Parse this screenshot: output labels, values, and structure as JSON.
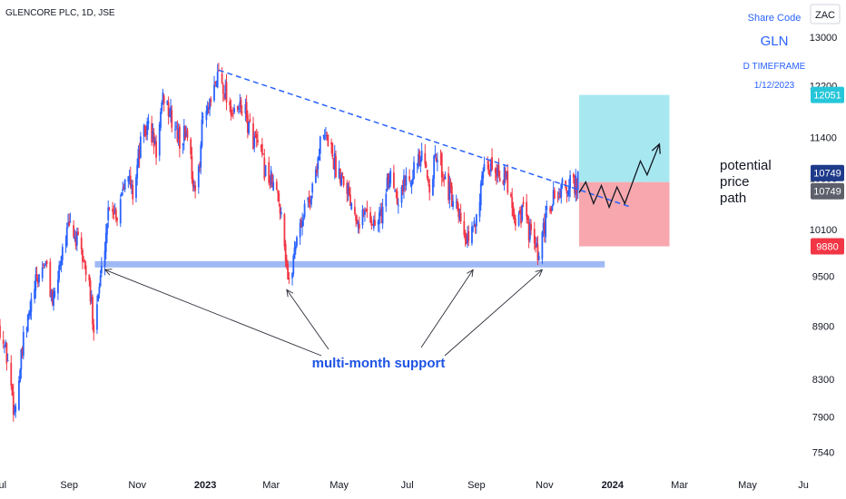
{
  "header": {
    "title": "GLENCORE PLC, 1D, JSE"
  },
  "currency_label": "ZAC",
  "info_box": {
    "line1": "Share Code",
    "line2": "GLN",
    "line3": "D TIMEFRAME",
    "line4": "1/12/2023"
  },
  "annotations": {
    "potential_lines": [
      "potential",
      "price",
      "path"
    ],
    "support_label": "multi-month support"
  },
  "colors": {
    "up": "#2962ff",
    "down": "#f23645",
    "target_zone": "#a7e8f0",
    "stop_zone": "#f7a7ad",
    "support_band": "#9fb9f5",
    "trendline": "#2962ff"
  },
  "price_badges": [
    {
      "value": 12051,
      "label": "12051",
      "color": "#26c6da"
    },
    {
      "value": 10749,
      "label": "10749",
      "color": "#1e3a8a"
    },
    {
      "value": 10749,
      "label": "10749",
      "color": "#5d606b"
    },
    {
      "value": 9880,
      "label": "9880",
      "color": "#f23645"
    }
  ],
  "chart_data": {
    "type": "candlestick",
    "title": "GLENCORE PLC, 1D, JSE",
    "y_scale": "log",
    "ylim": [
      7350,
      13650
    ],
    "y_ticks": [
      "13000",
      "12200",
      "11400",
      "10800",
      "10100",
      "9500",
      "8900",
      "8300",
      "7900",
      "7540"
    ],
    "y_tick_values": [
      13000,
      12200,
      11400,
      10800,
      10100,
      9500,
      8900,
      8300,
      7900,
      7540
    ],
    "x_ticks": [
      "Jul",
      "Sep",
      "Nov",
      "2023",
      "Mar",
      "May",
      "Jul",
      "Sep",
      "Nov",
      "2024",
      "Mar",
      "May",
      "Ju"
    ],
    "x_tick_dates": [
      "2022-07-01",
      "2022-09-01",
      "2022-11-01",
      "2023-01-01",
      "2023-03-01",
      "2023-05-01",
      "2023-07-01",
      "2023-09-01",
      "2023-11-01",
      "2024-01-01",
      "2024-03-01",
      "2024-05-01",
      "2024-06-20"
    ],
    "x_range": [
      "2022-07-01",
      "2024-06-20"
    ],
    "price_path": [
      [
        "2022-07-01",
        8900
      ],
      [
        "2022-07-08",
        8500
      ],
      [
        "2022-07-14",
        7950
      ],
      [
        "2022-07-22",
        8700
      ],
      [
        "2022-08-01",
        9350
      ],
      [
        "2022-08-10",
        9700
      ],
      [
        "2022-08-18",
        9150
      ],
      [
        "2022-08-26",
        9900
      ],
      [
        "2022-09-02",
        10150
      ],
      [
        "2022-09-09",
        9900
      ],
      [
        "2022-09-16",
        9600
      ],
      [
        "2022-09-23",
        8950
      ],
      [
        "2022-09-30",
        9550
      ],
      [
        "2022-10-07",
        10500
      ],
      [
        "2022-10-14",
        10300
      ],
      [
        "2022-10-21",
        10900
      ],
      [
        "2022-10-28",
        10600
      ],
      [
        "2022-11-04",
        11300
      ],
      [
        "2022-11-11",
        11600
      ],
      [
        "2022-11-18",
        11200
      ],
      [
        "2022-11-25",
        12050
      ],
      [
        "2022-12-02",
        11650
      ],
      [
        "2022-12-09",
        11350
      ],
      [
        "2022-12-16",
        11500
      ],
      [
        "2022-12-23",
        10500
      ],
      [
        "2022-12-30",
        11700
      ],
      [
        "2023-01-06",
        11850
      ],
      [
        "2023-01-13",
        12450
      ],
      [
        "2023-01-20",
        12050
      ],
      [
        "2023-01-27",
        11700
      ],
      [
        "2023-02-03",
        11900
      ],
      [
        "2023-02-10",
        11500
      ],
      [
        "2023-02-17",
        11250
      ],
      [
        "2023-02-24",
        10900
      ],
      [
        "2023-03-03",
        10700
      ],
      [
        "2023-03-10",
        10400
      ],
      [
        "2023-03-17",
        9350
      ],
      [
        "2023-03-24",
        10050
      ],
      [
        "2023-03-31",
        10350
      ],
      [
        "2023-04-07",
        10650
      ],
      [
        "2023-04-14",
        11300
      ],
      [
        "2023-04-21",
        11400
      ],
      [
        "2023-04-28",
        10950
      ],
      [
        "2023-05-05",
        10850
      ],
      [
        "2023-05-12",
        10500
      ],
      [
        "2023-05-19",
        10250
      ],
      [
        "2023-05-26",
        10350
      ],
      [
        "2023-06-02",
        10150
      ],
      [
        "2023-06-09",
        10350
      ],
      [
        "2023-06-16",
        10900
      ],
      [
        "2023-06-23",
        10550
      ],
      [
        "2023-06-30",
        10800
      ],
      [
        "2023-07-07",
        10950
      ],
      [
        "2023-07-14",
        11050
      ],
      [
        "2023-07-21",
        10750
      ],
      [
        "2023-07-28",
        11150
      ],
      [
        "2023-08-04",
        10800
      ],
      [
        "2023-08-11",
        10450
      ],
      [
        "2023-08-18",
        10150
      ],
      [
        "2023-08-25",
        9850
      ],
      [
        "2023-09-01",
        10350
      ],
      [
        "2023-09-08",
        10850
      ],
      [
        "2023-09-15",
        11000
      ],
      [
        "2023-09-22",
        10900
      ],
      [
        "2023-09-29",
        10750
      ],
      [
        "2023-10-06",
        10250
      ],
      [
        "2023-10-13",
        10350
      ],
      [
        "2023-10-20",
        10000
      ],
      [
        "2023-10-27",
        9700
      ],
      [
        "2023-11-03",
        10300
      ],
      [
        "2023-11-10",
        10550
      ],
      [
        "2023-11-17",
        10650
      ],
      [
        "2023-11-24",
        10700
      ],
      [
        "2023-12-01",
        10749
      ]
    ],
    "support_level": {
      "value": 9650,
      "from": "2022-09-24",
      "to": "2023-12-25"
    },
    "trendline": {
      "from": [
        "2023-01-13",
        12450
      ],
      "to": [
        "2024-01-18",
        10400
      ]
    },
    "target_zone": {
      "from": "2023-12-02",
      "to": "2024-02-21",
      "low": 10749,
      "high": 12051
    },
    "stop_zone": {
      "from": "2023-12-02",
      "to": "2024-02-21",
      "low": 9880,
      "high": 10749
    },
    "projected_path": [
      [
        "2023-12-02",
        10600
      ],
      [
        "2023-12-08",
        10750
      ],
      [
        "2023-12-15",
        10450
      ],
      [
        "2023-12-22",
        10700
      ],
      [
        "2023-12-29",
        10400
      ],
      [
        "2024-01-05",
        10680
      ],
      [
        "2024-01-12",
        10450
      ],
      [
        "2024-01-26",
        11050
      ],
      [
        "2024-02-01",
        10850
      ],
      [
        "2024-02-12",
        11300
      ]
    ]
  }
}
